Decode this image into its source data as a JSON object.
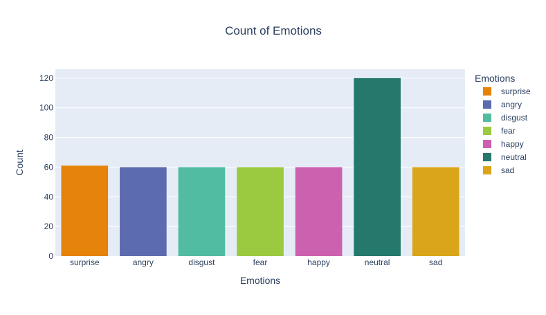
{
  "chart_data": {
    "type": "bar",
    "title": "Count of Emotions",
    "xlabel": "Emotions",
    "ylabel": "Count",
    "categories": [
      "surprise",
      "angry",
      "disgust",
      "fear",
      "happy",
      "neutral",
      "sad"
    ],
    "values": [
      61,
      60,
      60,
      60,
      60,
      120,
      60
    ],
    "colors": [
      "#E6830A",
      "#5C6BB0",
      "#52BCA0",
      "#9BC940",
      "#CC61B0",
      "#24796C",
      "#DAA51B"
    ],
    "ylim": [
      0,
      126
    ],
    "yticks": [
      0,
      20,
      40,
      60,
      80,
      100,
      120
    ],
    "grid": true,
    "legend": {
      "title": "Emotions",
      "position": "right"
    },
    "background_color": "#E5ECF6",
    "text_color": "#2A3F5F"
  }
}
